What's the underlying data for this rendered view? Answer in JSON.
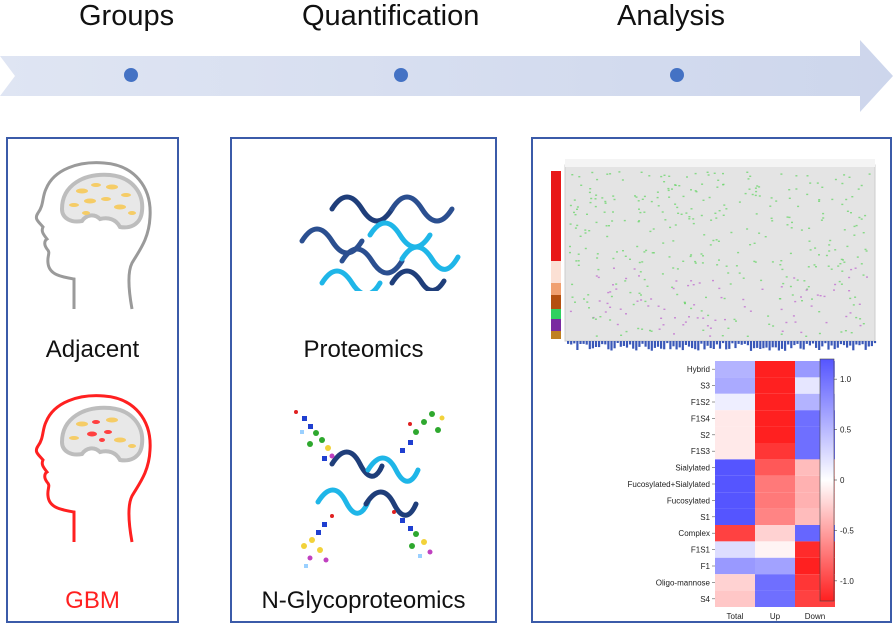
{
  "timeline": {
    "steps": [
      "Groups",
      "Quantification",
      "Analysis"
    ],
    "arrow_color": "#d5dcee",
    "dot_color": "#4472c4"
  },
  "panels": {
    "groups": {
      "labels": [
        "Adjacent",
        "GBM"
      ],
      "colors": {
        "normal": "#111111",
        "tumor": "#ff2020"
      },
      "icons": [
        "head-icon",
        "head-tumor-icon"
      ]
    },
    "quantification": {
      "labels": [
        "Proteomics",
        "N-Glycoproteomics"
      ],
      "icons": [
        "peptide-waves-icon",
        "glycopeptide-icon"
      ]
    }
  },
  "chart_data": {
    "type": "heatmap",
    "title": "",
    "rows": [
      "Hybrid",
      "S3",
      "F1S2",
      "F1S4",
      "S2",
      "F1S3",
      "Sialylated",
      "Fucosylated+Sialylated",
      "Fucosylated",
      "S1",
      "Complex",
      "F1S1",
      "F1",
      "Oligo-mannose",
      "S4"
    ],
    "columns": [
      "Total",
      "Up",
      "Down"
    ],
    "values": [
      [
        0.45,
        -1.0,
        0.6
      ],
      [
        0.5,
        -1.0,
        0.15
      ],
      [
        0.1,
        -1.0,
        0.45
      ],
      [
        -0.1,
        -1.0,
        0.85
      ],
      [
        -0.1,
        -1.0,
        0.85
      ],
      [
        -0.1,
        -0.9,
        0.85
      ],
      [
        1.0,
        -0.75,
        -0.3
      ],
      [
        1.0,
        -0.6,
        -0.35
      ],
      [
        1.0,
        -0.6,
        -0.35
      ],
      [
        1.0,
        -0.55,
        -0.3
      ],
      [
        -0.85,
        -0.2,
        0.9
      ],
      [
        0.2,
        -0.05,
        -0.95
      ],
      [
        0.6,
        0.55,
        -1.0
      ],
      [
        -0.2,
        0.85,
        -0.9
      ],
      [
        -0.25,
        0.85,
        -0.85
      ]
    ],
    "colorbar": {
      "min": -1.2,
      "max": 1.2,
      "ticks": [
        "1.0",
        "0.5",
        "0",
        "-0.5",
        "-1.0"
      ]
    }
  }
}
